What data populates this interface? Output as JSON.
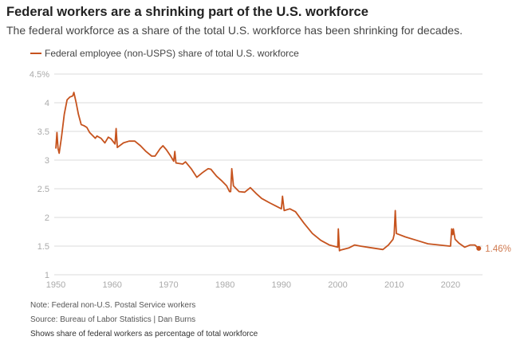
{
  "chart_data": {
    "type": "line",
    "title": "Federal workers are a shrinking part of the U.S. workforce",
    "subtitle": "The federal workforce as a share of the total U.S. workforce has been shrinking for decades.",
    "legend": [
      "Federal employee (non-USPS) share of total U.S. workforce"
    ],
    "xlabel": "",
    "ylabel": "",
    "xlim": [
      1950,
      2028
    ],
    "ylim": [
      1,
      4.5
    ],
    "x_ticks": [
      "1950",
      "1960",
      "1970",
      "1980",
      "1990",
      "2000",
      "2010",
      "2020"
    ],
    "y_ticks": [
      "1",
      "1.5",
      "2",
      "2.5",
      "3",
      "3.5",
      "4",
      "4.5%"
    ],
    "grid": true,
    "end_label": "1.46%",
    "color": "#c6531e",
    "series": [
      {
        "name": "Federal employee (non-USPS) share of total U.S. workforce",
        "x": [
          1950,
          1950.2,
          1950.4,
          1950.6,
          1951,
          1951.5,
          1952,
          1952.5,
          1953,
          1953.2,
          1953.6,
          1954,
          1954.5,
          1955,
          1955.5,
          1956,
          1957,
          1957.3,
          1958,
          1958.7,
          1959.3,
          1959.8,
          1960.5,
          1960.7,
          1960.9,
          1962,
          1963,
          1964,
          1965,
          1966,
          1967,
          1967.6,
          1968.5,
          1969,
          1969.6,
          1970.3,
          1970.9,
          1971.1,
          1971.3,
          1972.5,
          1973,
          1974,
          1975,
          1976,
          1977,
          1977.5,
          1978.5,
          1979.5,
          1980.3,
          1980.8,
          1981,
          1981.2,
          1981.5,
          1982.5,
          1983.5,
          1984.5,
          1985.5,
          1986.5,
          1988,
          1989,
          1990,
          1990.2,
          1990.5,
          1991.5,
          1992.5,
          1994,
          1995.5,
          1997,
          1998.5,
          2000,
          2000.1,
          2000.3,
          2000.5,
          2002,
          2003,
          2004,
          2006,
          2008,
          2009,
          2009.8,
          2010,
          2010.2,
          2010.4,
          2012,
          2014,
          2016,
          2018,
          2019.8,
          2020,
          2020.2,
          2020.4,
          2020.5,
          2020.8,
          2021.5,
          2022.5,
          2023.5,
          2024.3,
          2025
        ],
        "values": [
          3.2,
          3.48,
          3.2,
          3.12,
          3.4,
          3.8,
          4.05,
          4.1,
          4.12,
          4.18,
          4.0,
          3.8,
          3.62,
          3.6,
          3.57,
          3.48,
          3.38,
          3.42,
          3.38,
          3.3,
          3.4,
          3.37,
          3.28,
          3.55,
          3.22,
          3.3,
          3.33,
          3.33,
          3.25,
          3.15,
          3.07,
          3.07,
          3.2,
          3.25,
          3.18,
          3.08,
          2.98,
          3.15,
          2.95,
          2.93,
          2.97,
          2.85,
          2.7,
          2.78,
          2.85,
          2.84,
          2.72,
          2.63,
          2.55,
          2.45,
          2.45,
          2.85,
          2.55,
          2.45,
          2.44,
          2.52,
          2.42,
          2.33,
          2.25,
          2.2,
          2.15,
          2.37,
          2.12,
          2.15,
          2.1,
          1.9,
          1.72,
          1.6,
          1.52,
          1.48,
          1.8,
          1.42,
          1.43,
          1.47,
          1.52,
          1.5,
          1.47,
          1.44,
          1.52,
          1.62,
          1.7,
          2.12,
          1.72,
          1.66,
          1.6,
          1.54,
          1.52,
          1.5,
          1.5,
          1.8,
          1.7,
          1.8,
          1.62,
          1.55,
          1.48,
          1.52,
          1.52,
          1.46
        ]
      }
    ]
  },
  "notes": [
    "Note: Federal non-U.S. Postal Service workers",
    "Source: Bureau of Labor Statistics | Dan Burns",
    "Shows share of federal workers as percentage of total workforce"
  ]
}
